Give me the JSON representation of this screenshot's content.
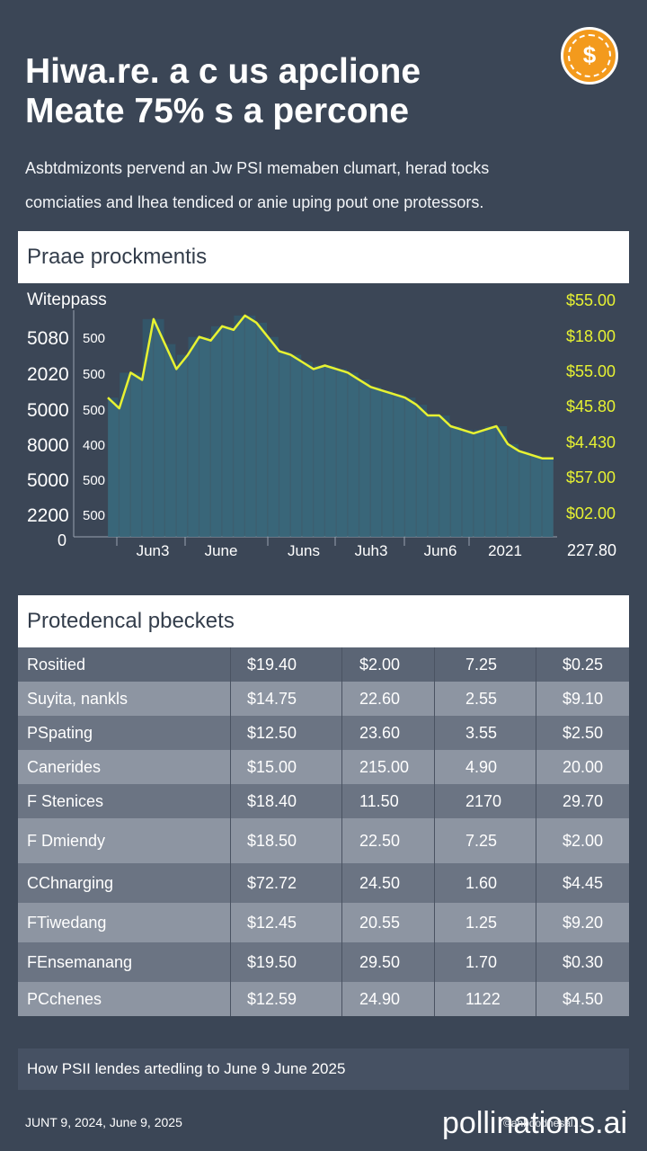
{
  "header": {
    "title_line1": "Hiwa.re. a c us apclione",
    "title_line2": "Meate 75% s a percone",
    "subtitle_line1": "Asbtdmizonts pervend an Jw PSI memaben clumart, herad tocks",
    "subtitle_line2": "comciaties and lhea tendiced or anie uping pout one protessors.",
    "badge_symbol": "$"
  },
  "chart_panel": {
    "title": "Praae prockmentis",
    "series_label": "Witeppass"
  },
  "chart_data": {
    "type": "area",
    "title": "Praae prockmentis",
    "series_name": "Witeppass",
    "left_axis_outer": [
      "5080",
      "2020",
      "5000",
      "8000",
      "5000",
      "2200"
    ],
    "left_axis_inner": [
      "500",
      "500",
      "500",
      "400",
      "500",
      "500"
    ],
    "origin_label": "0",
    "right_axis": [
      "$55.00",
      "$18.00",
      "$55.00",
      "$45.80",
      "$4.430",
      "$57.00",
      "$02.00"
    ],
    "x_labels": [
      "Jun3",
      "June",
      "Juns",
      "Juh3",
      "Jun6",
      "2021"
    ],
    "x_end_label": "227.80",
    "values": [
      390,
      360,
      460,
      440,
      610,
      540,
      470,
      510,
      560,
      550,
      590,
      580,
      620,
      600,
      560,
      520,
      510,
      490,
      470,
      480,
      470,
      460,
      440,
      420,
      410,
      400,
      390,
      370,
      340,
      340,
      310,
      300,
      290,
      300,
      310,
      260,
      240,
      230,
      220,
      220
    ],
    "ylim": [
      0,
      650
    ],
    "colors": {
      "line": "#e7f232",
      "fill": "#3e7487",
      "bars": "#33586b"
    }
  },
  "table": {
    "title": "Protedencal pbeckets",
    "rows": [
      [
        "Rositied",
        "$19.40",
        "$2.00",
        "7.25",
        "$0.25"
      ],
      [
        "Suyita, nankls",
        "$14.75",
        "22.60",
        "2.55",
        "$9.10"
      ],
      [
        "PSpating",
        "$12.50",
        "23.60",
        "3.55",
        "$2.50"
      ],
      [
        "Canerides",
        "$15.00",
        "215.00",
        "4.90",
        "20.00"
      ],
      [
        "F Stenices",
        "$18.40",
        "11.50",
        "2170",
        "29.70"
      ],
      [
        "F Dmiendy",
        "$18.50",
        "22.50",
        "7.25",
        "$2.00"
      ],
      [
        "CChnarging",
        "$72.72",
        "24.50",
        "1.60",
        "$4.45"
      ],
      [
        "FTiwedang",
        "$12.45",
        "20.55",
        "1.25",
        "$9.20"
      ],
      [
        "FEnsemanang",
        "$19.50",
        "29.50",
        "1.70",
        "$0.30"
      ],
      [
        "PCchenes",
        "$12.59",
        "24.90",
        "1122",
        "$4.50"
      ]
    ]
  },
  "footer": {
    "note": "How PSII lendes artedling to June 9 June 2025",
    "date_range": "JUNT 9, 2024, June 9, 2025",
    "watermark": "pollinations.ai",
    "watermark_small": "©anbdodnesal..."
  }
}
